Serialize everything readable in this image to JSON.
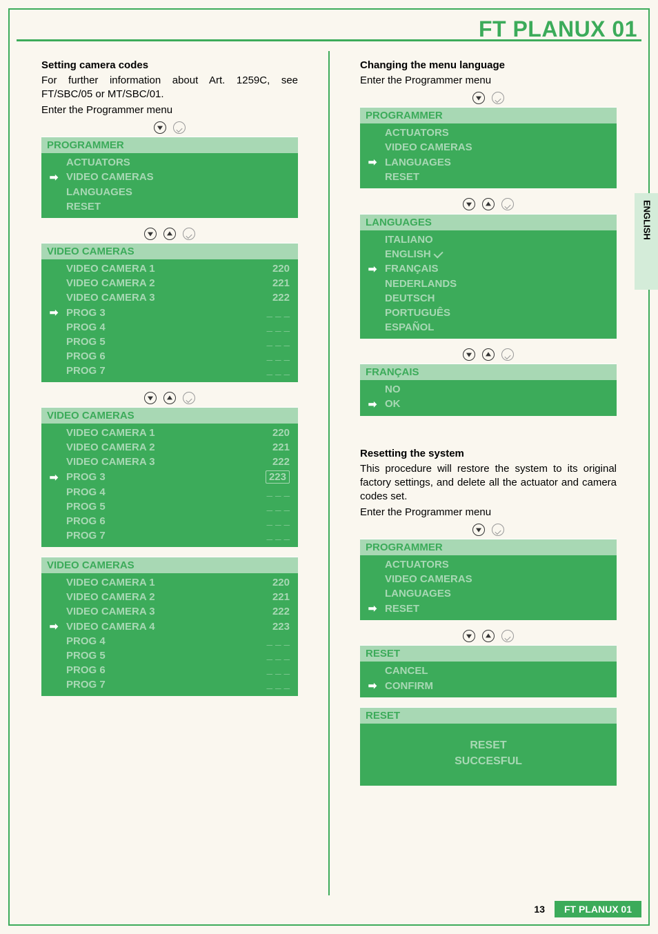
{
  "colors": {
    "green": "#3cab5a",
    "green_light": "#a8d8b4",
    "green_pale": "#d4ecd9",
    "cream": "#faf7ef"
  },
  "typography": {
    "body_size": 15,
    "title_size": 32,
    "font_family": "Helvetica"
  },
  "header": {
    "title": "FT PLANUX 01"
  },
  "side_tab": {
    "label": "ENGLISH"
  },
  "footer": {
    "page_number": "13",
    "doc_label": "FT PLANUX 01"
  },
  "left": {
    "s1_title": "Setting camera codes",
    "s1_para": "For further information about Art. 1259C, see FT/SBC/05 or MT/SBC/01.",
    "s1_enter": "Enter the Programmer menu",
    "menu1": {
      "head": "PROGRAMMER",
      "items": [
        {
          "label": "ACTUATORS",
          "arrow": false
        },
        {
          "label": "VIDEO CAMERAS",
          "arrow": true
        },
        {
          "label": "LANGUAGES",
          "arrow": false
        },
        {
          "label": "RESET",
          "arrow": false
        }
      ]
    },
    "menu2": {
      "head": "VIDEO CAMERAS",
      "items": [
        {
          "label": "VIDEO CAMERA 1",
          "value": "220",
          "arrow": false
        },
        {
          "label": "VIDEO CAMERA 2",
          "value": "221",
          "arrow": false
        },
        {
          "label": "VIDEO CAMERA 3",
          "value": "222",
          "arrow": false
        },
        {
          "label": "PROG 3",
          "value": "_ _ _",
          "arrow": true
        },
        {
          "label": "PROG 4",
          "value": "_ _ _",
          "arrow": false
        },
        {
          "label": "PROG 5",
          "value": "_ _ _",
          "arrow": false
        },
        {
          "label": "PROG 6",
          "value": "_ _ _",
          "arrow": false
        },
        {
          "label": "PROG 7",
          "value": "_ _ _",
          "arrow": false
        }
      ]
    },
    "menu3": {
      "head": "VIDEO CAMERAS",
      "items": [
        {
          "label": "VIDEO CAMERA 1",
          "value": "220",
          "arrow": false
        },
        {
          "label": "VIDEO CAMERA 2",
          "value": "221",
          "arrow": false
        },
        {
          "label": "VIDEO CAMERA 3",
          "value": "222",
          "arrow": false
        },
        {
          "label": "PROG 3",
          "value": "223",
          "arrow": true,
          "boxed": true
        },
        {
          "label": "PROG 4",
          "value": "_ _ _",
          "arrow": false
        },
        {
          "label": "PROG 5",
          "value": "_ _ _",
          "arrow": false
        },
        {
          "label": "PROG 6",
          "value": "_ _ _",
          "arrow": false
        },
        {
          "label": "PROG 7",
          "value": "_ _ _",
          "arrow": false
        }
      ]
    },
    "menu4": {
      "head": "VIDEO CAMERAS",
      "items": [
        {
          "label": "VIDEO CAMERA 1",
          "value": "220",
          "arrow": false
        },
        {
          "label": "VIDEO CAMERA 2",
          "value": "221",
          "arrow": false
        },
        {
          "label": "VIDEO CAMERA 3",
          "value": "222",
          "arrow": false
        },
        {
          "label": "VIDEO CAMERA 4",
          "value": "223",
          "arrow": true
        },
        {
          "label": "PROG 4",
          "value": "_ _ _",
          "arrow": false
        },
        {
          "label": "PROG 5",
          "value": "_ _ _",
          "arrow": false
        },
        {
          "label": "PROG 6",
          "value": "_ _ _",
          "arrow": false
        },
        {
          "label": "PROG 7",
          "value": "_ _ _",
          "arrow": false
        }
      ]
    }
  },
  "right": {
    "s1_title": "Changing the menu language",
    "s1_enter": "Enter the Programmer menu",
    "menu1": {
      "head": "PROGRAMMER",
      "items": [
        {
          "label": "ACTUATORS",
          "arrow": false
        },
        {
          "label": "VIDEO CAMERAS",
          "arrow": false
        },
        {
          "label": "LANGUAGES",
          "arrow": true
        },
        {
          "label": "RESET",
          "arrow": false
        }
      ]
    },
    "menu2": {
      "head": "LANGUAGES",
      "items": [
        {
          "label": "ITALIANO",
          "arrow": false
        },
        {
          "label": "ENGLISH",
          "arrow": false,
          "check": true
        },
        {
          "label": "FRANÇAIS",
          "arrow": true
        },
        {
          "label": "NEDERLANDS",
          "arrow": false
        },
        {
          "label": "DEUTSCH",
          "arrow": false
        },
        {
          "label": "PORTUGUÊS",
          "arrow": false
        },
        {
          "label": "ESPAÑOL",
          "arrow": false
        }
      ]
    },
    "menu3": {
      "head": "FRANÇAIS",
      "items": [
        {
          "label": "NO",
          "arrow": false
        },
        {
          "label": "OK",
          "arrow": true
        }
      ]
    },
    "s2_title": "Resetting the system",
    "s2_para": "This procedure will restore the system to its original factory settings, and delete all the actuator and camera codes set.",
    "s2_enter": "Enter the Programmer menu",
    "menu4": {
      "head": "PROGRAMMER",
      "items": [
        {
          "label": "ACTUATORS",
          "arrow": false
        },
        {
          "label": "VIDEO CAMERAS",
          "arrow": false
        },
        {
          "label": "LANGUAGES",
          "arrow": false
        },
        {
          "label": "RESET",
          "arrow": true
        }
      ]
    },
    "menu5": {
      "head": "RESET",
      "items": [
        {
          "label": "CANCEL",
          "arrow": false
        },
        {
          "label": "CONFIRM",
          "arrow": true
        }
      ]
    },
    "menu6": {
      "head": "RESET",
      "message_l1": "RESET",
      "message_l2": "SUCCESFUL"
    }
  }
}
